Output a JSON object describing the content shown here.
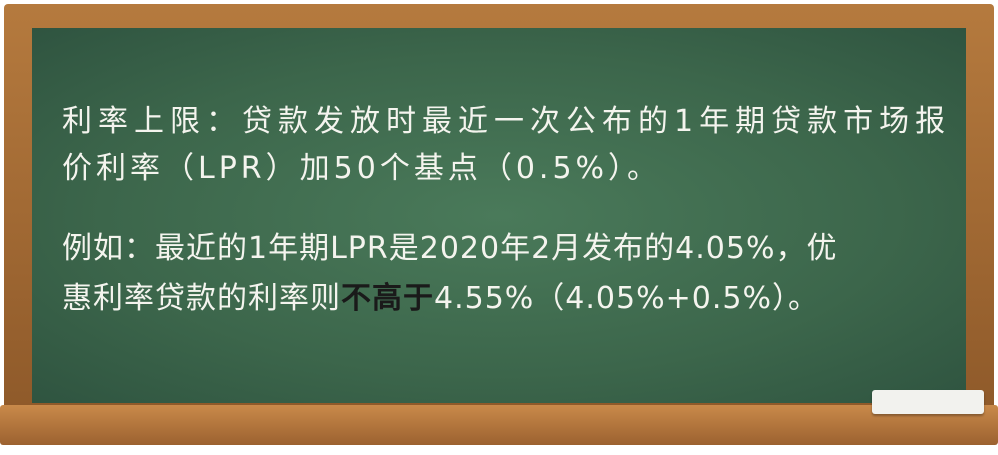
{
  "board": {
    "lines": [
      [
        "利率上限：贷款发放时最近一次公布的1年期贷款市场报"
      ],
      [
        "价利率（LPR）加50个基点（0.5%）。"
      ],
      [
        "例如：最近的1年期LPR是2020年2月发布的4.05%，优"
      ],
      [
        "惠利率贷款的利率则",
        "不高于",
        "4.55%（4.05%+0.5%）。"
      ]
    ]
  }
}
